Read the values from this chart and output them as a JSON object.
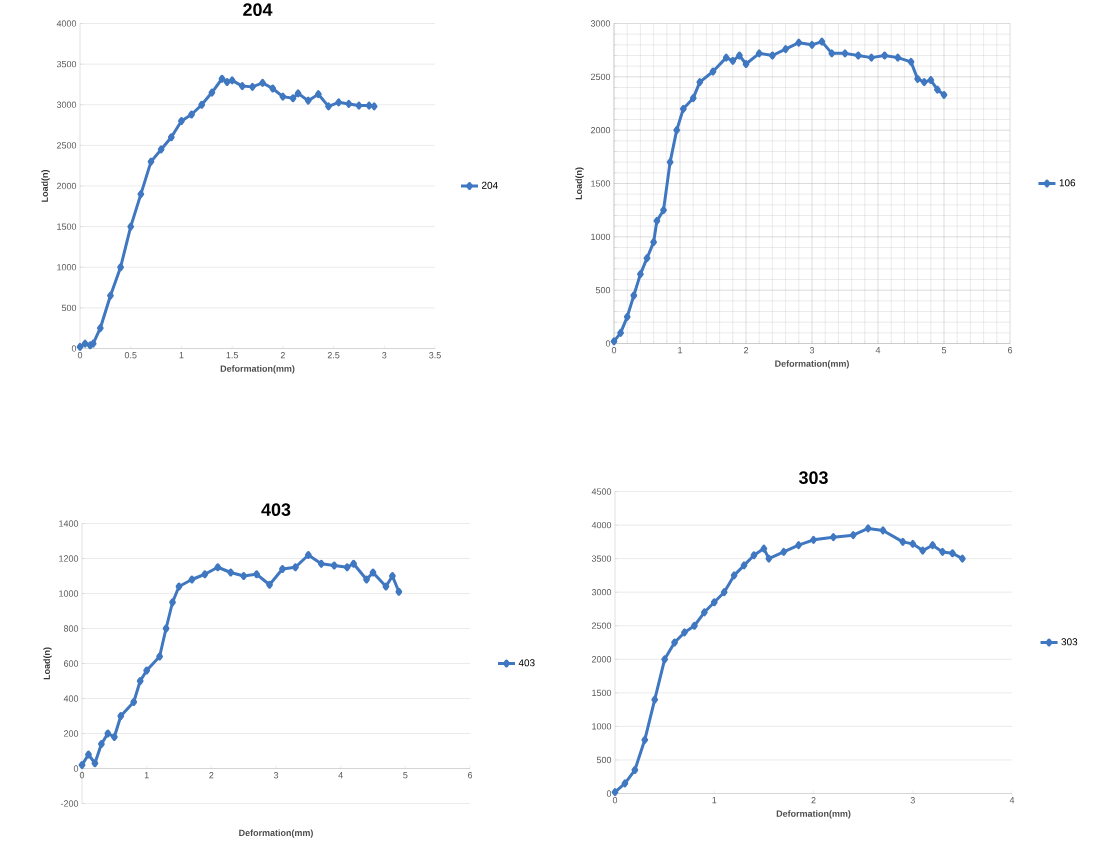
{
  "chart_data": [
    {
      "type": "line",
      "title": "204",
      "xlabel": "Deformation(mm)",
      "ylabel": "Load(n)",
      "xlim": [
        0,
        3.5
      ],
      "xticks": [
        0,
        0.5,
        1,
        1.5,
        2,
        2.5,
        3,
        3.5
      ],
      "ylim": [
        0,
        4000
      ],
      "yticks": [
        0,
        500,
        1000,
        1500,
        2000,
        2500,
        3000,
        3500,
        4000
      ],
      "grid": "y",
      "legend": "right",
      "marker": "diamond",
      "series": [
        {
          "name": "204",
          "color": "#3f77c0",
          "x": [
            0,
            0.05,
            0.1,
            0.13,
            0.2,
            0.3,
            0.4,
            0.5,
            0.6,
            0.7,
            0.8,
            0.9,
            1.0,
            1.1,
            1.2,
            1.3,
            1.4,
            1.45,
            1.5,
            1.6,
            1.7,
            1.8,
            1.9,
            2.0,
            2.1,
            2.15,
            2.25,
            2.35,
            2.45,
            2.55,
            2.65,
            2.75,
            2.85,
            2.9
          ],
          "values": [
            20,
            60,
            40,
            60,
            250,
            650,
            1000,
            1500,
            1900,
            2300,
            2450,
            2600,
            2800,
            2880,
            3000,
            3150,
            3320,
            3280,
            3300,
            3230,
            3220,
            3270,
            3200,
            3100,
            3080,
            3140,
            3050,
            3130,
            2980,
            3030,
            3010,
            2990,
            2990,
            2980
          ]
        }
      ]
    },
    {
      "type": "line",
      "xlabel": "Deformation(mm)",
      "ylabel": "Load(n)",
      "xlim": [
        0,
        6
      ],
      "xticks": [
        0,
        1,
        2,
        3,
        4,
        5,
        6
      ],
      "ylim": [
        0,
        3000
      ],
      "yticks": [
        0,
        500,
        1000,
        1500,
        2000,
        2500,
        3000
      ],
      "grid": true,
      "legend": "right",
      "marker": "diamond",
      "series": [
        {
          "name": "106",
          "color": "#3f77c0",
          "x": [
            0,
            0.1,
            0.2,
            0.3,
            0.4,
            0.5,
            0.6,
            0.65,
            0.75,
            0.85,
            0.95,
            1.05,
            1.2,
            1.3,
            1.5,
            1.7,
            1.8,
            1.9,
            2.0,
            2.2,
            2.4,
            2.6,
            2.8,
            3.0,
            3.15,
            3.3,
            3.5,
            3.7,
            3.9,
            4.1,
            4.3,
            4.5,
            4.6,
            4.7,
            4.8,
            4.9,
            5.0
          ],
          "values": [
            20,
            100,
            250,
            450,
            650,
            800,
            950,
            1150,
            1250,
            1700,
            2000,
            2200,
            2300,
            2450,
            2550,
            2680,
            2650,
            2700,
            2620,
            2720,
            2700,
            2760,
            2820,
            2800,
            2830,
            2720,
            2720,
            2700,
            2680,
            2700,
            2680,
            2640,
            2480,
            2450,
            2470,
            2380,
            2330
          ]
        }
      ]
    },
    {
      "type": "line",
      "title": "403",
      "xlabel": "Deformation(mm)",
      "ylabel": "Load(n)",
      "xlim": [
        0,
        6
      ],
      "xticks": [
        0,
        1,
        2,
        3,
        4,
        5,
        6
      ],
      "ylim": [
        -200,
        1400
      ],
      "yticks": [
        -200,
        0,
        200,
        400,
        600,
        800,
        1000,
        1200,
        1400
      ],
      "grid": "y",
      "legend": "right",
      "marker": "diamond",
      "series": [
        {
          "name": "403",
          "color": "#3f77c0",
          "x": [
            0,
            0.1,
            0.2,
            0.3,
            0.4,
            0.5,
            0.6,
            0.8,
            0.9,
            1.0,
            1.2,
            1.3,
            1.4,
            1.5,
            1.7,
            1.9,
            2.1,
            2.3,
            2.5,
            2.7,
            2.9,
            3.1,
            3.3,
            3.5,
            3.7,
            3.9,
            4.1,
            4.2,
            4.4,
            4.5,
            4.7,
            4.8,
            4.9
          ],
          "values": [
            20,
            80,
            30,
            140,
            200,
            180,
            300,
            380,
            500,
            560,
            640,
            800,
            950,
            1040,
            1080,
            1110,
            1150,
            1120,
            1100,
            1110,
            1050,
            1140,
            1150,
            1220,
            1170,
            1160,
            1150,
            1170,
            1080,
            1120,
            1040,
            1100,
            1010
          ]
        }
      ]
    },
    {
      "type": "line",
      "title": "303",
      "xlabel": "Deformation(mm)",
      "xlim": [
        0,
        4
      ],
      "xticks": [
        0,
        1,
        2,
        3,
        4
      ],
      "ylim": [
        0,
        4500
      ],
      "yticks": [
        0,
        500,
        1000,
        1500,
        2000,
        2500,
        3000,
        3500,
        4000,
        4500
      ],
      "grid": "y",
      "legend": "right",
      "marker": "diamond",
      "series": [
        {
          "name": "303",
          "color": "#3f77c0",
          "x": [
            0,
            0.1,
            0.2,
            0.3,
            0.4,
            0.5,
            0.6,
            0.7,
            0.8,
            0.9,
            1.0,
            1.1,
            1.2,
            1.3,
            1.4,
            1.5,
            1.55,
            1.7,
            1.85,
            2.0,
            2.2,
            2.4,
            2.55,
            2.7,
            2.9,
            3.0,
            3.1,
            3.2,
            3.3,
            3.4,
            3.5
          ],
          "values": [
            20,
            150,
            350,
            800,
            1400,
            2000,
            2250,
            2400,
            2500,
            2700,
            2850,
            3000,
            3250,
            3400,
            3550,
            3650,
            3500,
            3600,
            3700,
            3780,
            3820,
            3850,
            3950,
            3920,
            3750,
            3720,
            3620,
            3700,
            3600,
            3580,
            3500
          ]
        }
      ]
    }
  ]
}
